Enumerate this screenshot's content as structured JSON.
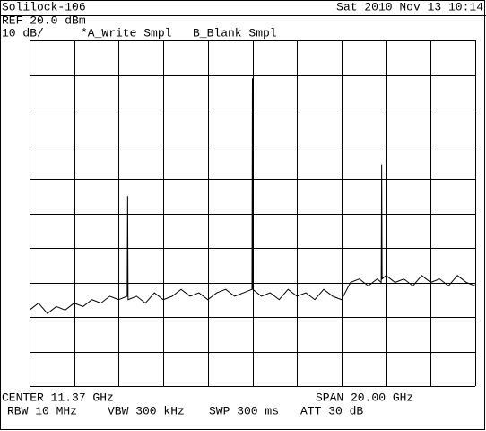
{
  "chart_data": {
    "type": "line",
    "header": {
      "instrument": "Solilock-106",
      "datetime": "Sat 2010 Nov 13 10:14"
    },
    "ref_level": "REF 20.0 dBm",
    "scale": "10 dB/",
    "trace_a": "*A_Write Smpl",
    "trace_b": "B_Blank Smpl",
    "center": "CENTER 11.37 GHz",
    "span": "SPAN 20.00 GHz",
    "rbw": "RBW 10 MHz",
    "vbw": "VBW 300 kHz",
    "sweep": "SWP 300 ms",
    "attenuation": "ATT 30 dB",
    "x": [
      1.37,
      1.77,
      2.17,
      2.57,
      2.97,
      3.37,
      3.77,
      4.17,
      4.57,
      4.97,
      5.37,
      5.75,
      5.77,
      5.79,
      6.17,
      6.57,
      6.97,
      7.37,
      7.77,
      8.17,
      8.57,
      8.97,
      9.37,
      9.77,
      10.17,
      10.57,
      10.97,
      11.35,
      11.37,
      11.39,
      11.77,
      12.17,
      12.57,
      12.97,
      13.37,
      13.77,
      14.17,
      14.57,
      14.97,
      15.37,
      15.77,
      16.17,
      16.57,
      16.97,
      17.15,
      17.17,
      17.19,
      17.37,
      17.77,
      18.17,
      18.57,
      18.97,
      19.37,
      19.77,
      20.17,
      20.57,
      20.97,
      21.37
    ],
    "values": [
      -58,
      -56,
      -59,
      -57,
      -58,
      -56,
      -57,
      -55,
      -56,
      -54,
      -55,
      -54,
      -25,
      -55,
      -54,
      -56,
      -53,
      -55,
      -54,
      -52,
      -54,
      -53,
      -55,
      -53,
      -52,
      -54,
      -53,
      -52,
      9,
      -52,
      -54,
      -53,
      -55,
      -52,
      -54,
      -53,
      -55,
      -52,
      -54,
      -55,
      -50,
      -49,
      -51,
      -49,
      -50,
      -16,
      -49,
      -48,
      -50,
      -49,
      -51,
      -48,
      -50,
      -49,
      -51,
      -48,
      -50,
      -51
    ],
    "color": "#000000",
    "xlim": [
      1.37,
      21.37
    ],
    "xticks": [
      1.37,
      3.37,
      5.37,
      7.37,
      9.37,
      11.37,
      13.37,
      15.37,
      17.37,
      19.37,
      21.37
    ],
    "ylim": [
      -80,
      20
    ],
    "yticks": [
      -80,
      -70,
      -60,
      -50,
      -40,
      -30,
      -20,
      -10,
      0,
      10,
      20
    ],
    "grid": true
  }
}
